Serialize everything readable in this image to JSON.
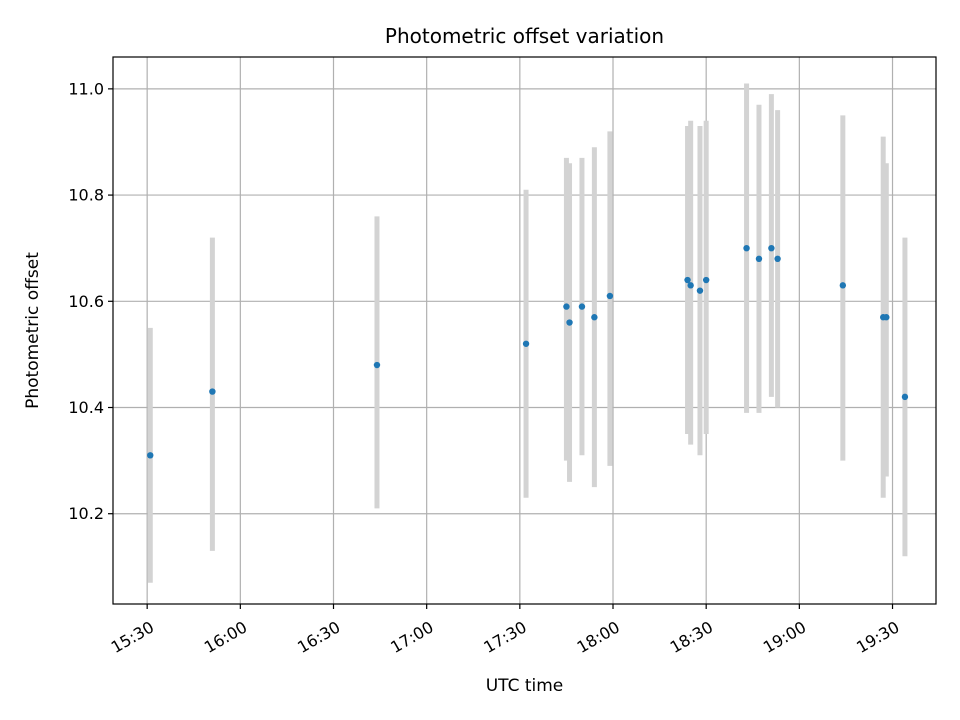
{
  "chart_data": {
    "type": "scatter",
    "title": "Photometric offset variation",
    "xlabel": "UTC time",
    "ylabel": "Photometric offset",
    "grid": true,
    "xlim": [
      "15:19",
      "19:44"
    ],
    "ylim": [
      10.03,
      11.06
    ],
    "xticks": [
      "15:30",
      "16:00",
      "16:30",
      "17:00",
      "17:30",
      "18:00",
      "18:30",
      "19:00",
      "19:30"
    ],
    "yticks": [
      "10.2",
      "10.4",
      "10.6",
      "10.8",
      "11.0"
    ],
    "colors": {
      "points": "#1f77b4",
      "errorbars": "#d3d3d3",
      "grid": "#b0b0b0"
    },
    "series": [
      {
        "name": "Photometric offset",
        "points": [
          {
            "x": "15:31",
            "y": 10.31,
            "ylow": 10.07,
            "yhigh": 10.55
          },
          {
            "x": "15:51",
            "y": 10.43,
            "ylow": 10.13,
            "yhigh": 10.72
          },
          {
            "x": "16:44",
            "y": 10.48,
            "ylow": 10.21,
            "yhigh": 10.76
          },
          {
            "x": "17:32",
            "y": 10.52,
            "ylow": 10.23,
            "yhigh": 10.81
          },
          {
            "x": "17:45",
            "y": 10.59,
            "ylow": 10.3,
            "yhigh": 10.87
          },
          {
            "x": "17:46",
            "y": 10.56,
            "ylow": 10.26,
            "yhigh": 10.86
          },
          {
            "x": "17:50",
            "y": 10.59,
            "ylow": 10.31,
            "yhigh": 10.87
          },
          {
            "x": "17:54",
            "y": 10.57,
            "ylow": 10.25,
            "yhigh": 10.89
          },
          {
            "x": "17:59",
            "y": 10.61,
            "ylow": 10.29,
            "yhigh": 10.92
          },
          {
            "x": "18:24",
            "y": 10.64,
            "ylow": 10.35,
            "yhigh": 10.93
          },
          {
            "x": "18:25",
            "y": 10.63,
            "ylow": 10.33,
            "yhigh": 10.94
          },
          {
            "x": "18:28",
            "y": 10.62,
            "ylow": 10.31,
            "yhigh": 10.93
          },
          {
            "x": "18:30",
            "y": 10.64,
            "ylow": 10.35,
            "yhigh": 10.94
          },
          {
            "x": "18:43",
            "y": 10.7,
            "ylow": 10.39,
            "yhigh": 11.01
          },
          {
            "x": "18:47",
            "y": 10.68,
            "ylow": 10.39,
            "yhigh": 10.97
          },
          {
            "x": "18:51",
            "y": 10.7,
            "ylow": 10.42,
            "yhigh": 10.99
          },
          {
            "x": "18:53",
            "y": 10.68,
            "ylow": 10.4,
            "yhigh": 10.96
          },
          {
            "x": "19:14",
            "y": 10.63,
            "ylow": 10.3,
            "yhigh": 10.95
          },
          {
            "x": "19:27",
            "y": 10.57,
            "ylow": 10.23,
            "yhigh": 10.91
          },
          {
            "x": "19:28",
            "y": 10.57,
            "ylow": 10.27,
            "yhigh": 10.86
          },
          {
            "x": "19:34",
            "y": 10.42,
            "ylow": 10.12,
            "yhigh": 10.72
          }
        ]
      }
    ]
  }
}
